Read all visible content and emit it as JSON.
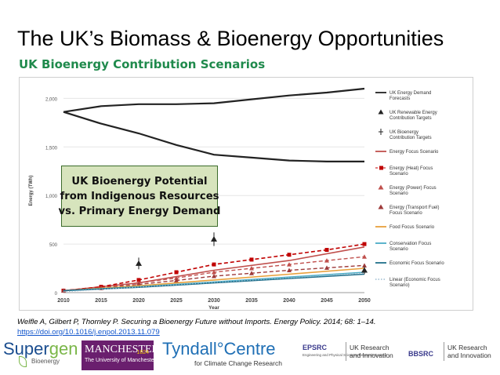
{
  "slide": {
    "title": "The UK’s Biomass & Bioenergy Opportunities",
    "subtitle": "UK Bioenergy Contribution Scenarios",
    "overlay_lines": [
      "UK Bioenergy Potential",
      "from Indigenous Resources",
      "vs. Primary Energy Demand"
    ],
    "citation": "Welfle A, Gilbert P, Thornley P. Securing a Bioenergy Future without Imports. Energy Policy. 2014; 68: 1–14.",
    "citation_link": "https://doi.org/10.1016/j.enpol.2013.11.079"
  },
  "logos": {
    "supergen_a": "Super",
    "supergen_b": "gen",
    "supergen_sub": "Bioenergy",
    "manchester_name": "MANCHESTER",
    "manchester_year": "1824",
    "manchester_sub": "The University of Manchester",
    "tyndall": "Tyndall°Centre",
    "tyndall_sub": "for Climate Change Research",
    "epsrc": "EPSRC",
    "epsrc_sub": "Engineering and Physical Sciences Research Council",
    "ukri_1a": "UK Research",
    "ukri_1b": "and Innovation",
    "bbsrc": "BBSRC",
    "ukri_2a": "UK Research",
    "ukri_2b": "and Innovation"
  },
  "chart_data": {
    "type": "line",
    "ylabel": "Energy (TWh)",
    "xlabel": "Year",
    "xlim": [
      2010,
      2050
    ],
    "ylim": [
      0,
      2100
    ],
    "x_ticks": [
      2010,
      2015,
      2020,
      2025,
      2030,
      2035,
      2040,
      2045,
      2050
    ],
    "y_ticks": [
      0,
      500,
      1000,
      1500,
      2000
    ],
    "y_tick_labels": [
      "0",
      "500",
      "1,000",
      "1,500",
      "2,000"
    ],
    "grid": true,
    "legend_position": "right",
    "series": [
      {
        "name": "UK Energy Demand Forecasts",
        "color": "#222222",
        "style": "solid",
        "width": 2.2,
        "x": [
          2010,
          2015,
          2020,
          2025,
          2030,
          2035,
          2040,
          2045,
          2050
        ],
        "values": [
          1860,
          1920,
          1940,
          1940,
          1950,
          1990,
          2030,
          2060,
          2100
        ]
      },
      {
        "name": "UK Energy Demand Forecasts",
        "color": "#222222",
        "style": "solid",
        "width": 2.2,
        "legend": false,
        "x": [
          2010,
          2015,
          2020,
          2025,
          2030,
          2035,
          2040,
          2045,
          2050
        ],
        "values": [
          1860,
          1740,
          1640,
          1520,
          1420,
          1390,
          1360,
          1350,
          1350
        ]
      },
      {
        "name": "Energy Focus Scenario",
        "color": "#c0504d",
        "style": "solid",
        "width": 1.6,
        "x": [
          2010,
          2020,
          2030,
          2040,
          2050
        ],
        "values": [
          20,
          100,
          230,
          330,
          470
        ]
      },
      {
        "name": "Energy (Heat) Focus Scenario",
        "color": "#c00000",
        "style": "dashed",
        "marker": "square",
        "width": 1.6,
        "x": [
          2010,
          2015,
          2020,
          2025,
          2030,
          2035,
          2040,
          2045,
          2050
        ],
        "values": [
          20,
          60,
          130,
          210,
          290,
          340,
          390,
          440,
          500
        ]
      },
      {
        "name": "Energy (Power) Focus Scenario",
        "color": "#c0504d",
        "style": "dashed",
        "marker": "triangle",
        "width": 1.4,
        "x": [
          2010,
          2015,
          2020,
          2025,
          2030,
          2035,
          2040,
          2045,
          2050
        ],
        "values": [
          20,
          50,
          100,
          150,
          210,
          250,
          290,
          330,
          370
        ]
      },
      {
        "name": "Energy (Transport Fuel) Focus Scenario",
        "color": "#9e3a3a",
        "style": "dashed",
        "marker": "triangle",
        "width": 1.4,
        "x": [
          2010,
          2015,
          2020,
          2025,
          2030,
          2035,
          2040,
          2045,
          2050
        ],
        "values": [
          20,
          45,
          85,
          125,
          170,
          200,
          230,
          255,
          280
        ]
      },
      {
        "name": "Food Focus Scenario",
        "color": "#e8a03c",
        "style": "solid",
        "width": 1.6,
        "x": [
          2010,
          2020,
          2030,
          2040,
          2050
        ],
        "values": [
          20,
          70,
          130,
          190,
          250
        ]
      },
      {
        "name": "Conservation Focus Scenario",
        "color": "#4bacc6",
        "style": "solid",
        "width": 1.6,
        "x": [
          2010,
          2020,
          2030,
          2040,
          2050
        ],
        "values": [
          20,
          60,
          110,
          160,
          210
        ]
      },
      {
        "name": "Economic Focus Scenario",
        "color": "#1f6f8b",
        "style": "solid",
        "width": 1.6,
        "x": [
          2010,
          2020,
          2030,
          2040,
          2050
        ],
        "values": [
          20,
          55,
          100,
          145,
          190
        ]
      },
      {
        "name": "Linear (Economic Focus Scenario)",
        "color": "#9cbcd0",
        "style": "dotted",
        "width": 1.2,
        "x": [
          2010,
          2050
        ],
        "values": [
          10,
          200
        ]
      }
    ],
    "targets": {
      "name": "UK Renewable Energy Contribution Targets",
      "marker": "triangle",
      "points": [
        {
          "x": 2020,
          "y": 300,
          "err": 60
        },
        {
          "x": 2030,
          "y": 550,
          "err": 70
        },
        {
          "x": 2050,
          "y": 230,
          "err": 40
        }
      ]
    },
    "legend": [
      {
        "label": "UK Energy Demand Forecasts",
        "color": "#222222",
        "kind": "line"
      },
      {
        "label": "UK Renewable Energy Contribution Targets",
        "color": "#222222",
        "kind": "triangle"
      },
      {
        "label": "UK Bioenergy Contribution Targets",
        "color": "#222222",
        "kind": "bar"
      },
      {
        "label": "Energy Focus Scenario",
        "color": "#c0504d",
        "kind": "line"
      },
      {
        "label": "Energy (Heat) Focus Scenario",
        "color": "#c00000",
        "kind": "square"
      },
      {
        "label": "Energy (Power) Focus Scenario",
        "color": "#c0504d",
        "kind": "triangle"
      },
      {
        "label": "Energy (Transport Fuel) Focus Scenario",
        "color": "#9e3a3a",
        "kind": "triangle"
      },
      {
        "label": "Food Focus Scenario",
        "color": "#e8a03c",
        "kind": "line"
      },
      {
        "label": "Conservation Focus Scenario",
        "color": "#4bacc6",
        "kind": "line"
      },
      {
        "label": "Economic Focus Scenario",
        "color": "#1f6f8b",
        "kind": "line"
      },
      {
        "label": "Linear (Economic Focus Scenario)",
        "color": "#9cbcd0",
        "kind": "dotted"
      }
    ]
  }
}
